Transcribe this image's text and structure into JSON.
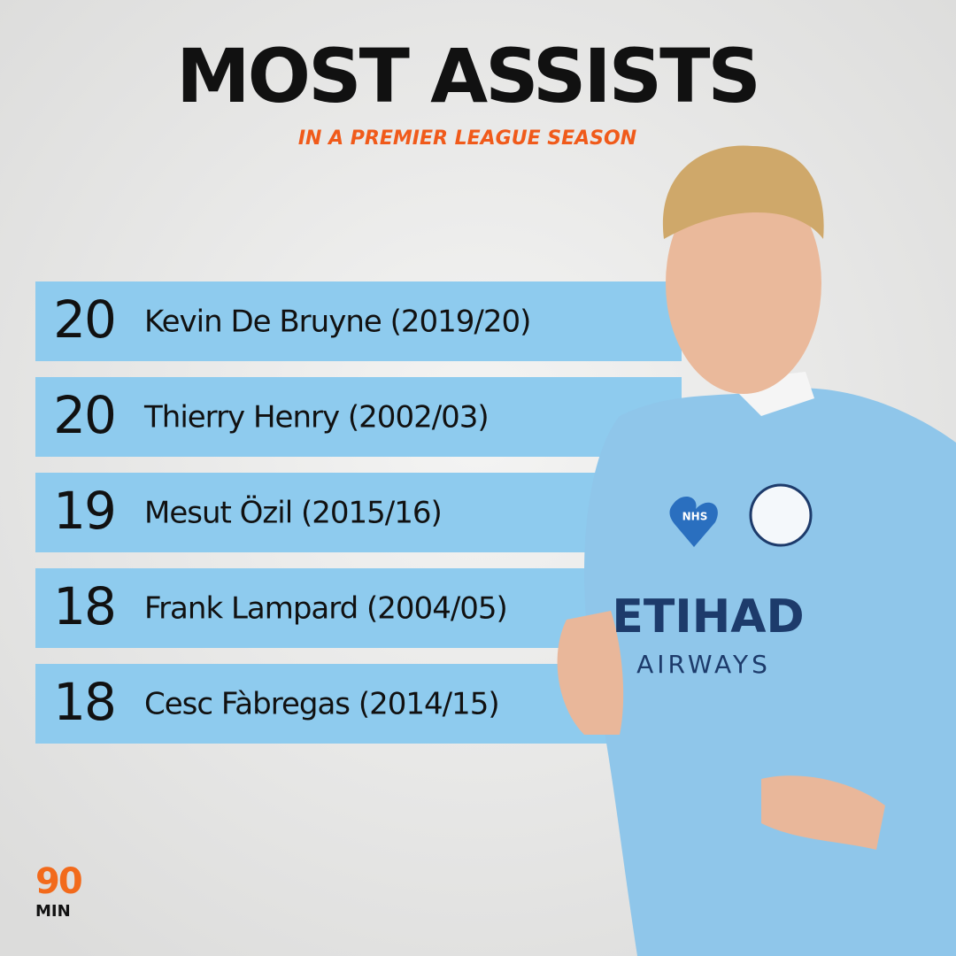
{
  "header": {
    "title": "MOST ASSISTS",
    "subtitle": "IN A PREMIER LEAGUE SEASON"
  },
  "rows": [
    {
      "assists": 20,
      "player": "Kevin De Bruyne (2019/20)"
    },
    {
      "assists": 20,
      "player": "Thierry Henry (2002/03)"
    },
    {
      "assists": 19,
      "player": "Mesut Özil (2015/16)"
    },
    {
      "assists": 18,
      "player": "Frank Lampard (2004/05)"
    },
    {
      "assists": 18,
      "player": "Cesc Fàbregas (2014/15)"
    }
  ],
  "photo": {
    "sponsor_line1": "ETIHAD",
    "sponsor_line2": "AIRWAYS",
    "badge": "NHS"
  },
  "logo": {
    "top": "90",
    "bottom": "MIN"
  }
}
